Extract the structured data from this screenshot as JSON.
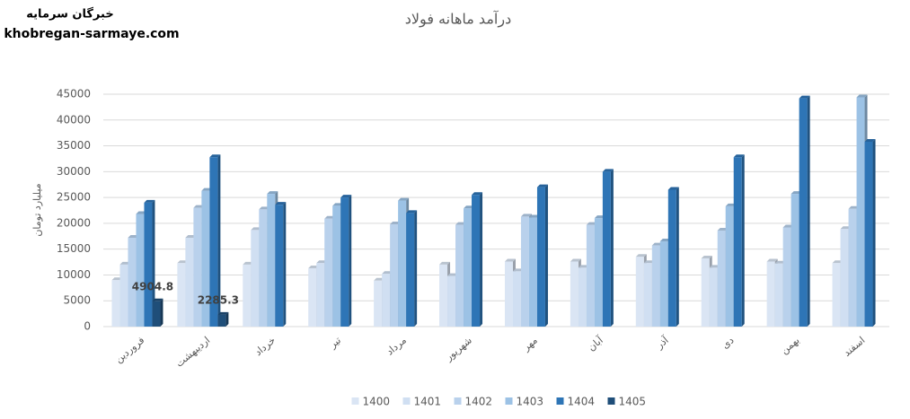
{
  "chart_data": {
    "type": "bar",
    "title": "درآمد ماهانه فولاد",
    "watermark": [
      "خبرگان سرمایه",
      "khobregan-sarmaye.com"
    ],
    "y_label": "میلیارد تومان",
    "categories": [
      "فروردین",
      "اردیبهشت",
      "خرداد",
      "تیر",
      "مرداد",
      "شهریور",
      "مهر",
      "آبان",
      "آذر",
      "دی",
      "بهمن",
      "اسفند"
    ],
    "series": [
      {
        "name": "1400",
        "color": "#dae5f4",
        "values": [
          9000,
          12300,
          12000,
          11300,
          8900,
          12000,
          12600,
          12600,
          13500,
          13200,
          12600,
          12300
        ]
      },
      {
        "name": "1401",
        "color": "#d0dff2",
        "values": [
          12000,
          17200,
          18700,
          12300,
          10200,
          9800,
          10700,
          11400,
          12300,
          11400,
          12200,
          18900
        ]
      },
      {
        "name": "1402",
        "color": "#b9d1ec",
        "values": [
          17200,
          23000,
          22700,
          20900,
          19800,
          19700,
          21300,
          19700,
          15700,
          18600,
          19200,
          22800
        ]
      },
      {
        "name": "1403",
        "color": "#9cc2e5",
        "values": [
          21800,
          26300,
          25700,
          23400,
          24400,
          22900,
          21100,
          21000,
          16500,
          23300,
          25700,
          44400
        ]
      },
      {
        "name": "1404",
        "color": "#2e75b6",
        "values": [
          24000,
          32800,
          23600,
          25000,
          22000,
          25500,
          27000,
          30000,
          26500,
          32800,
          44200,
          35800
        ]
      },
      {
        "name": "1405",
        "color": "#1f4e79",
        "show_labels": true,
        "values": [
          4904.8,
          2285.3,
          null,
          null,
          null,
          null,
          null,
          null,
          null,
          null,
          null,
          null
        ]
      }
    ],
    "ylim": [
      0,
      45000
    ],
    "yticks": [
      0,
      5000,
      10000,
      15000,
      20000,
      25000,
      30000,
      35000,
      40000,
      45000
    ],
    "grid": true,
    "legend": "bottom"
  }
}
